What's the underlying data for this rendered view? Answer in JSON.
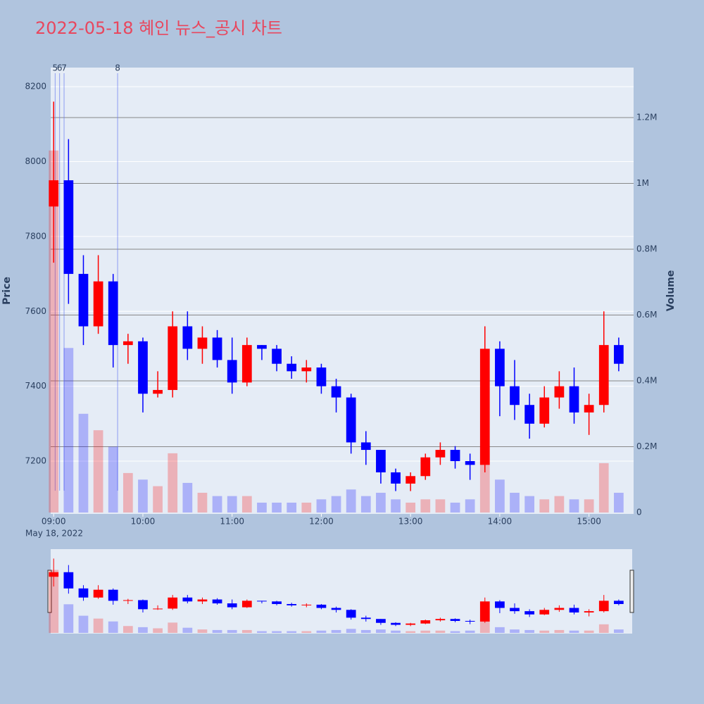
{
  "chart_data": {
    "type": "candlestick",
    "title": "2022-05-18 혜인 뉴스_공시 차트",
    "y_title": "Price",
    "y2_title": "Volume",
    "date_label": "May 18, 2022",
    "increasing_color": "#ff0000",
    "decreasing_color": "#0000ff",
    "x": [
      "09:00",
      "09:10",
      "09:20",
      "09:30",
      "09:40",
      "09:50",
      "10:00",
      "10:10",
      "10:20",
      "10:30",
      "10:40",
      "10:50",
      "11:00",
      "11:10",
      "11:20",
      "11:30",
      "11:40",
      "11:50",
      "12:00",
      "12:10",
      "12:20",
      "12:30",
      "12:40",
      "12:50",
      "13:00",
      "13:10",
      "13:20",
      "13:30",
      "13:40",
      "13:50",
      "14:00",
      "14:10",
      "14:20",
      "14:30",
      "14:40",
      "14:50",
      "15:00",
      "15:10",
      "15:20"
    ],
    "open": [
      7880,
      7950,
      7700,
      7560,
      7680,
      7510,
      7520,
      7380,
      7390,
      7560,
      7500,
      7530,
      7470,
      7410,
      7510,
      7500,
      7460,
      7440,
      7450,
      7400,
      7370,
      7250,
      7230,
      7170,
      7140,
      7160,
      7210,
      7230,
      7200,
      7190,
      7500,
      7400,
      7350,
      7300,
      7370,
      7400,
      7330,
      7350,
      7510
    ],
    "high": [
      8160,
      8060,
      7750,
      7750,
      7700,
      7540,
      7530,
      7440,
      7600,
      7600,
      7560,
      7550,
      7530,
      7530,
      7510,
      7510,
      7480,
      7470,
      7460,
      7420,
      7380,
      7280,
      7230,
      7180,
      7170,
      7220,
      7250,
      7240,
      7220,
      7560,
      7520,
      7470,
      7380,
      7400,
      7440,
      7450,
      7380,
      7600,
      7530
    ],
    "low": [
      7730,
      7620,
      7510,
      7540,
      7450,
      7460,
      7330,
      7370,
      7370,
      7470,
      7460,
      7450,
      7380,
      7400,
      7470,
      7440,
      7420,
      7410,
      7380,
      7330,
      7220,
      7190,
      7140,
      7120,
      7120,
      7150,
      7190,
      7180,
      7150,
      7170,
      7320,
      7310,
      7260,
      7290,
      7340,
      7300,
      7270,
      7330,
      7440
    ],
    "close": [
      7950,
      7700,
      7560,
      7680,
      7510,
      7520,
      7380,
      7390,
      7560,
      7500,
      7530,
      7470,
      7410,
      7510,
      7500,
      7460,
      7440,
      7450,
      7400,
      7370,
      7250,
      7230,
      7170,
      7140,
      7160,
      7210,
      7230,
      7200,
      7190,
      7500,
      7400,
      7350,
      7300,
      7370,
      7400,
      7330,
      7350,
      7510,
      7460
    ],
    "volume": [
      1100000,
      500000,
      300000,
      250000,
      200000,
      120000,
      100000,
      80000,
      180000,
      90000,
      60000,
      50000,
      50000,
      50000,
      30000,
      30000,
      30000,
      30000,
      40000,
      50000,
      70000,
      50000,
      60000,
      40000,
      30000,
      40000,
      40000,
      30000,
      40000,
      200000,
      100000,
      60000,
      50000,
      40000,
      50000,
      40000,
      40000,
      150000,
      60000
    ],
    "xlim": [
      "08:58",
      "15:30"
    ],
    "xticks": [
      "09:00",
      "10:00",
      "11:00",
      "12:00",
      "13:00",
      "14:00",
      "15:00"
    ],
    "ylim": [
      7059,
      8251
    ],
    "yticks": [
      7200,
      7400,
      7600,
      7800,
      8000,
      8200
    ],
    "y2lim": [
      0,
      1352000
    ],
    "y2ticks": [
      0,
      {
        "value": 200000,
        "label": "0.2M"
      },
      {
        "value": 400000,
        "label": "0.4M"
      },
      {
        "value": 600000,
        "label": "0.6M"
      },
      {
        "value": 800000,
        "label": "0.8M"
      },
      {
        "value": 1000000,
        "label": "1M"
      },
      {
        "value": 1200000,
        "label": "1.2M"
      }
    ],
    "annotations": [
      {
        "label": "5",
        "x": "09:01"
      },
      {
        "label": "6",
        "x": "09:04"
      },
      {
        "label": "7",
        "x": "09:07"
      },
      {
        "label": "8",
        "x": "09:43"
      }
    ]
  }
}
